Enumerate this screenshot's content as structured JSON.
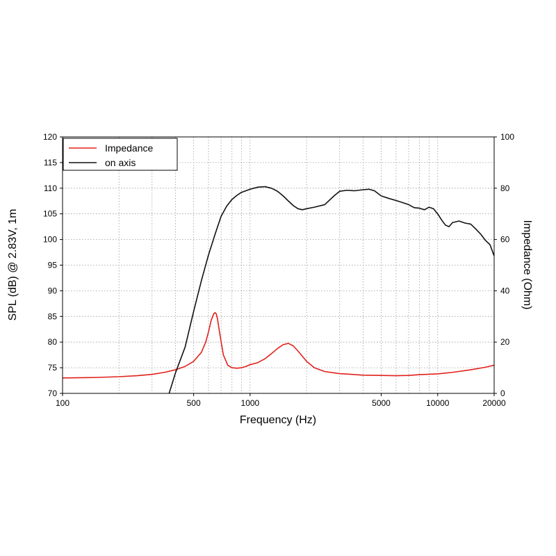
{
  "chart_data": {
    "type": "line",
    "xlabel": "Frequency (Hz)",
    "ylabel_left": "SPL (dB) @ 2.83V, 1m",
    "ylabel_right": "Impedance (Ohm)",
    "x_scale": "log",
    "xlim": [
      100,
      20000
    ],
    "ylim_left": [
      70,
      120
    ],
    "ylim_right": [
      0,
      100
    ],
    "x_ticks": [
      100,
      500,
      1000,
      5000,
      10000,
      20000
    ],
    "x_tick_labels": [
      "100",
      "500",
      "1000",
      "5000",
      "10000",
      "20000"
    ],
    "y_ticks_left": [
      70,
      75,
      80,
      85,
      90,
      95,
      100,
      105,
      110,
      115,
      120
    ],
    "y_tick_labels_left": [
      "70",
      "75",
      "80",
      "85",
      "90",
      "95",
      "100",
      "105",
      "110",
      "115",
      "120"
    ],
    "y_ticks_right": [
      0,
      20,
      40,
      60,
      80,
      100
    ],
    "y_tick_labels_right": [
      "0",
      "20",
      "40",
      "60",
      "80",
      "100"
    ],
    "grid": true,
    "legend_position": "top-left",
    "series": [
      {
        "name": "Impedance",
        "color": "#e0201b",
        "axis": "right",
        "x": [
          100,
          150,
          200,
          250,
          300,
          350,
          400,
          450,
          500,
          550,
          580,
          600,
          620,
          640,
          650,
          660,
          670,
          690,
          720,
          760,
          800,
          850,
          900,
          950,
          1000,
          1100,
          1200,
          1300,
          1400,
          1500,
          1600,
          1700,
          1800,
          2000,
          2200,
          2500,
          3000,
          3500,
          4000,
          5000,
          6000,
          7000,
          8000,
          10000,
          12000,
          15000,
          18000,
          20000
        ],
        "y": [
          6.0,
          6.2,
          6.5,
          6.9,
          7.4,
          8.2,
          9.2,
          10.5,
          12.5,
          16.0,
          20.0,
          24.0,
          28.5,
          31.0,
          31.5,
          31.0,
          29.0,
          23.0,
          15.0,
          11.0,
          10.0,
          9.8,
          10.0,
          10.5,
          11.2,
          12.0,
          13.5,
          15.5,
          17.5,
          19.0,
          19.5,
          18.5,
          16.5,
          12.5,
          10.0,
          8.5,
          7.7,
          7.4,
          7.1,
          7.0,
          6.9,
          7.0,
          7.3,
          7.6,
          8.2,
          9.2,
          10.2,
          11.0
        ]
      },
      {
        "name": "on axis",
        "color": "#111111",
        "axis": "left",
        "x": [
          370,
          400,
          450,
          500,
          550,
          600,
          650,
          700,
          750,
          800,
          850,
          900,
          1000,
          1100,
          1200,
          1300,
          1400,
          1500,
          1600,
          1700,
          1800,
          1900,
          2000,
          2200,
          2500,
          2800,
          3000,
          3300,
          3600,
          4000,
          4300,
          4600,
          5000,
          5500,
          6000,
          6500,
          7000,
          7500,
          8000,
          8500,
          9000,
          9500,
          10000,
          10500,
          11000,
          11500,
          12000,
          13000,
          14000,
          15000,
          16000,
          17000,
          18000,
          19000,
          20000
        ],
        "y": [
          70,
          74,
          79,
          86,
          92,
          97,
          101,
          104.5,
          106.5,
          107.8,
          108.6,
          109.2,
          109.8,
          110.2,
          110.3,
          110.0,
          109.4,
          108.5,
          107.5,
          106.6,
          106.0,
          105.8,
          106.0,
          106.3,
          106.8,
          108.5,
          109.4,
          109.6,
          109.5,
          109.7,
          109.8,
          109.5,
          108.5,
          108.0,
          107.6,
          107.2,
          106.8,
          106.2,
          106.1,
          105.8,
          106.3,
          106.0,
          105.0,
          103.8,
          102.8,
          102.5,
          103.3,
          103.6,
          103.2,
          103.0,
          102.0,
          101.0,
          99.8,
          99.0,
          96.8
        ]
      }
    ]
  }
}
